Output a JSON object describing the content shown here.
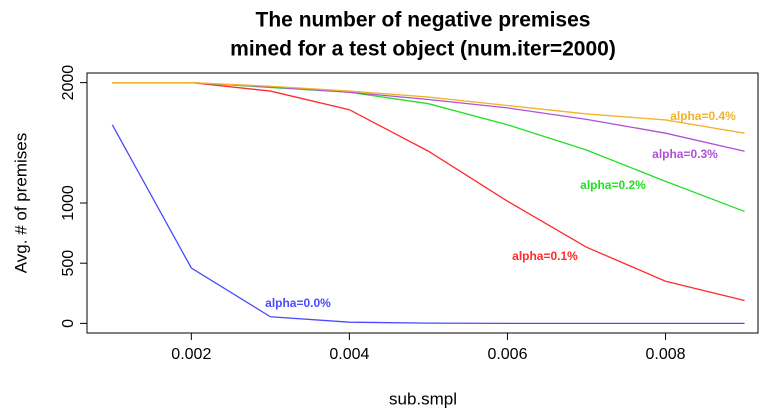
{
  "chart_data": {
    "type": "line",
    "title": [
      "The number of negative premises",
      "mined for a test object (num.iter=2000)"
    ],
    "x_label": "sub.smpl",
    "y_label": "Avg. # of premises",
    "x": [
      0.001,
      0.002,
      0.003,
      0.004,
      0.005,
      0.006,
      0.007,
      0.008,
      0.009
    ],
    "series": [
      {
        "name": "alpha=0.0%",
        "color": "#4a4aff",
        "values": [
          1650,
          460,
          55,
          10,
          2,
          0,
          0,
          0,
          0
        ]
      },
      {
        "name": "alpha=0.1%",
        "color": "#ff2a2a",
        "values": [
          2000,
          2000,
          1930,
          1775,
          1430,
          1015,
          633,
          350,
          190
        ]
      },
      {
        "name": "alpha=0.2%",
        "color": "#22e022",
        "values": [
          2000,
          2000,
          1960,
          1920,
          1825,
          1650,
          1440,
          1180,
          930
        ]
      },
      {
        "name": "alpha=0.3%",
        "color": "#b050d8",
        "values": [
          2000,
          2000,
          1965,
          1920,
          1860,
          1790,
          1695,
          1580,
          1430
        ]
      },
      {
        "name": "alpha=0.4%",
        "color": "#f2b22a",
        "values": [
          2000,
          2000,
          1970,
          1930,
          1880,
          1810,
          1740,
          1690,
          1580
        ]
      }
    ],
    "xlim": [
      0.00068,
      0.00917
    ],
    "ylim": [
      -80,
      2080
    ],
    "xticks": [
      0.002,
      0.004,
      0.006,
      0.008
    ],
    "yticks": [
      0,
      500,
      1000,
      2000
    ]
  }
}
